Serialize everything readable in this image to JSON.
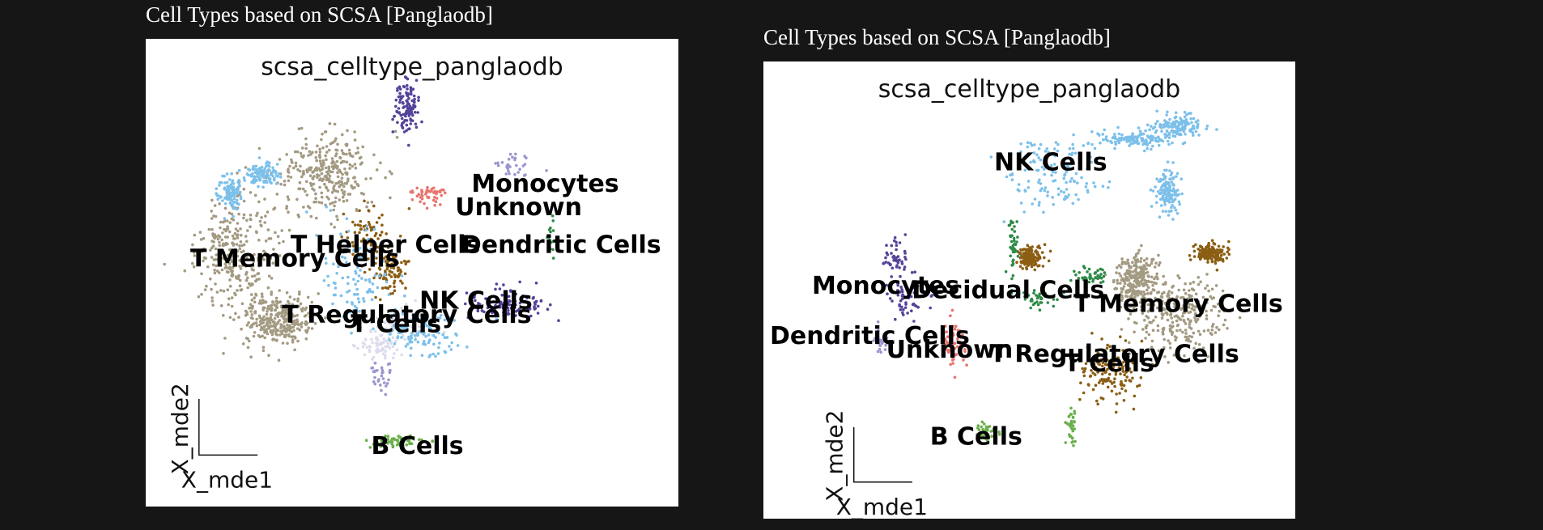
{
  "colors": {
    "B Cells": "#6ab04c",
    "Decidual Cells": "#2e8b47",
    "Dendritic Cells": "#9a96cf",
    "Monocytes": "#55429a",
    "NK Cells": "#7cc0ea",
    "T Cells": "#dcdcec",
    "T Helper Cells": "#8b5e14",
    "T Memory Cells": "#a39a82",
    "T Regulatory Cells": "#8b5e14",
    "Unknown": "#e8756e"
  },
  "chart_data": [
    {
      "type": "scatter",
      "caption": "Cell Types based on SCSA [Panglaodb]",
      "title": "scsa_celltype_panglaodb",
      "xlabel": "X_mde1",
      "ylabel": "X_mde2",
      "clusters": [
        {
          "name": "T Memory Cells",
          "label": "T Memory Cells",
          "x": [
            0.1,
            0.26
          ],
          "y": [
            0.34,
            0.7
          ],
          "n": 900,
          "blobs": [
            [
              0.17,
              0.46,
              0.07,
              0.11
            ],
            [
              0.34,
              0.29,
              0.08,
              0.08
            ],
            [
              0.25,
              0.6,
              0.06,
              0.05
            ]
          ],
          "label_pos": [
            0.28,
            0.47
          ]
        },
        {
          "name": "T Helper Cells",
          "label": "T Helper Cells",
          "blobs": [
            [
              0.42,
              0.42,
              0.04,
              0.06
            ],
            [
              0.46,
              0.5,
              0.03,
              0.04
            ]
          ],
          "n": 160,
          "label_pos": [
            0.45,
            0.44
          ]
        },
        {
          "name": "T Regulatory Cells",
          "label": "T Regulatory Cells",
          "blobs": [],
          "n": 0,
          "label_pos": [
            0.49,
            0.59
          ]
        },
        {
          "name": "T Cells",
          "label": "T Cells",
          "blobs": [
            [
              0.48,
              0.62,
              0.06,
              0.04
            ],
            [
              0.44,
              0.66,
              0.04,
              0.03
            ]
          ],
          "n": 120,
          "label_pos": [
            0.47,
            0.61
          ]
        },
        {
          "name": "NK Cells",
          "label": "NK Cells",
          "blobs": [
            [
              0.52,
              0.63,
              0.07,
              0.04
            ],
            [
              0.16,
              0.33,
              0.02,
              0.03
            ],
            [
              0.22,
              0.29,
              0.03,
              0.02
            ],
            [
              0.4,
              0.5,
              0.06,
              0.1
            ]
          ],
          "n": 420,
          "label_pos": [
            0.62,
            0.56
          ]
        },
        {
          "name": "Monocytes",
          "label": "Monocytes",
          "blobs": [
            [
              0.68,
              0.57,
              0.07,
              0.03
            ],
            [
              0.49,
              0.15,
              0.02,
              0.05
            ]
          ],
          "n": 220,
          "label_pos": [
            0.75,
            0.31
          ]
        },
        {
          "name": "Unknown",
          "label": "Unknown",
          "blobs": [
            [
              0.53,
              0.33,
              0.04,
              0.02
            ]
          ],
          "n": 50,
          "label_pos": [
            0.7,
            0.36
          ]
        },
        {
          "name": "Dendritic Cells",
          "label": "Dendritic Cells",
          "blobs": [
            [
              0.69,
              0.27,
              0.03,
              0.03
            ],
            [
              0.44,
              0.72,
              0.02,
              0.03
            ]
          ],
          "n": 60,
          "label_pos": [
            0.78,
            0.44
          ]
        },
        {
          "name": "Decidual Cells",
          "label": "",
          "blobs": [
            [
              0.76,
              0.42,
              0.01,
              0.05
            ]
          ],
          "n": 14,
          "label_pos": null
        },
        {
          "name": "B Cells",
          "label": "B Cells",
          "blobs": [
            [
              0.47,
              0.86,
              0.05,
              0.01
            ]
          ],
          "n": 55,
          "label_pos": [
            0.51,
            0.87
          ]
        }
      ]
    },
    {
      "type": "scatter",
      "caption": "Cell Types based on SCSA [Panglaodb]",
      "title": "scsa_celltype_panglaodb",
      "xlabel": "X_mde1",
      "ylabel": "X_mde2",
      "clusters": [
        {
          "name": "NK Cells",
          "label": "NK Cells",
          "blobs": [
            [
              0.55,
              0.24,
              0.08,
              0.07
            ],
            [
              0.7,
              0.17,
              0.07,
              0.02
            ],
            [
              0.78,
              0.14,
              0.04,
              0.02
            ],
            [
              0.76,
              0.28,
              0.02,
              0.05
            ]
          ],
          "n": 520,
          "label_pos": [
            0.54,
            0.22
          ]
        },
        {
          "name": "T Memory Cells",
          "label": "T Memory Cells",
          "blobs": [
            [
              0.78,
              0.55,
              0.08,
              0.08
            ],
            [
              0.7,
              0.48,
              0.04,
              0.05
            ]
          ],
          "n": 520,
          "label_pos": [
            0.78,
            0.53
          ]
        },
        {
          "name": "T Regulatory Cells",
          "label": "T Regulatory Cells",
          "blobs": [
            [
              0.65,
              0.68,
              0.06,
              0.06
            ],
            [
              0.84,
              0.42,
              0.03,
              0.02
            ],
            [
              0.5,
              0.43,
              0.02,
              0.02
            ]
          ],
          "n": 420,
          "label_pos": [
            0.66,
            0.64
          ]
        },
        {
          "name": "T Cells",
          "label": "T Cells",
          "blobs": [],
          "n": 0,
          "label_pos": [
            0.65,
            0.66
          ]
        },
        {
          "name": "Decidual Cells",
          "label": "Decidual Cells",
          "blobs": [
            [
              0.47,
              0.4,
              0.01,
              0.07
            ],
            [
              0.52,
              0.52,
              0.03,
              0.02
            ],
            [
              0.62,
              0.47,
              0.03,
              0.02
            ]
          ],
          "n": 120,
          "label_pos": [
            0.46,
            0.5
          ]
        },
        {
          "name": "Monocytes",
          "label": "Monocytes",
          "blobs": [
            [
              0.25,
              0.43,
              0.02,
              0.05
            ],
            [
              0.27,
              0.52,
              0.03,
              0.04
            ]
          ],
          "n": 100,
          "label_pos": [
            0.23,
            0.49
          ]
        },
        {
          "name": "Dendritic Cells",
          "label": "Dendritic Cells",
          "blobs": [
            [
              0.22,
              0.61,
              0.01,
              0.03
            ]
          ],
          "n": 25,
          "label_pos": [
            0.2,
            0.6
          ]
        },
        {
          "name": "Unknown",
          "label": "Unknown",
          "blobs": [
            [
              0.36,
              0.62,
              0.02,
              0.04
            ]
          ],
          "n": 60,
          "label_pos": [
            0.35,
            0.63
          ]
        },
        {
          "name": "B Cells",
          "label": "B Cells",
          "blobs": [
            [
              0.42,
              0.81,
              0.02,
              0.02
            ],
            [
              0.58,
              0.8,
              0.01,
              0.04
            ]
          ],
          "n": 70,
          "label_pos": [
            0.4,
            0.82
          ]
        }
      ]
    }
  ]
}
